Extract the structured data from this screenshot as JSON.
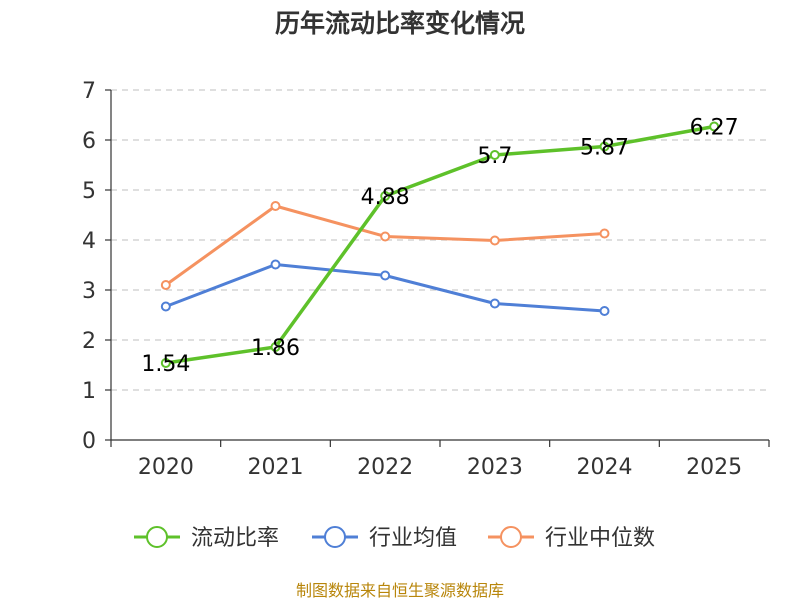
{
  "chart_data": {
    "type": "line",
    "title": "历年流动比率变化情况",
    "categories": [
      "2020",
      "2021",
      "2022",
      "2023",
      "2024",
      "2025"
    ],
    "ylim": [
      0,
      7
    ],
    "yticks": [
      0,
      1,
      2,
      3,
      4,
      5,
      6,
      7
    ],
    "grid": true,
    "legend_position": "bottom",
    "series": [
      {
        "name": "流动比率",
        "color": "#5ec12a",
        "values": [
          1.54,
          1.86,
          4.88,
          5.7,
          5.87,
          6.27
        ],
        "labels": [
          "1.54",
          "1.86",
          "4.88",
          "5.7",
          "5.87",
          "6.27"
        ]
      },
      {
        "name": "行业均值",
        "color": "#4f7fd6",
        "values": [
          2.67,
          3.51,
          3.29,
          2.73,
          2.58,
          null
        ]
      },
      {
        "name": "行业中位数",
        "color": "#f59260",
        "values": [
          3.1,
          4.68,
          4.07,
          3.99,
          4.13,
          null
        ]
      }
    ]
  },
  "source": "制图数据来自恒生聚源数据库"
}
